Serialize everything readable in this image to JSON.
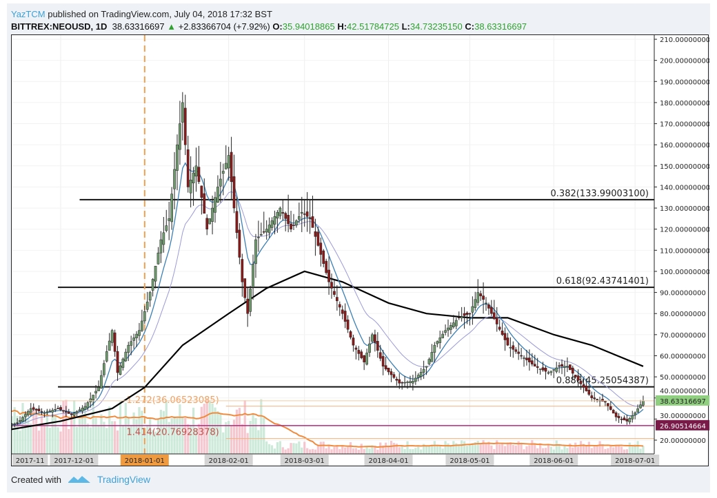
{
  "header": {
    "user": "YazTCM",
    "published": " published on TradingView.com, July 04, 2018 17:32 BST",
    "symbol": "BITTREX:NEOUSD, 1D",
    "last": "38.63316697",
    "change": "+2.83366704 (+7.92%)",
    "o_label": "O:",
    "o": "35.94018865",
    "h_label": "H:",
    "h": "42.51784725",
    "l_label": "L:",
    "l": "34.73235150",
    "c_label": "C:",
    "c": "38.63316697"
  },
  "footer": {
    "created_with": "Created with",
    "brand": "TradingView"
  },
  "colors": {
    "up": "#2ea12e",
    "bull_candle": "#6e9a6e",
    "bear_candle": "#8b1a1a",
    "ma_long": "#000000",
    "ema_fast": "#3a7fb5",
    "ema_slow": "#9a9ad8",
    "fib_orange": "#f0a060",
    "support": "#8b1a4a",
    "price_label": "#8fcf7f"
  },
  "chart_data": {
    "type": "candlestick",
    "symbol": "BITTREX:NEOUSD",
    "interval": "1D",
    "ylim": [
      15,
      210
    ],
    "y_ticks": [
      "210.00000000",
      "200.00000000",
      "190.00000000",
      "180.00000000",
      "170.00000000",
      "160.00000000",
      "150.00000000",
      "140.00000000",
      "130.00000000",
      "120.00000000",
      "110.00000000",
      "100.00000000",
      "90.00000000",
      "80.00000000",
      "70.00000000",
      "60.00000000",
      "50.00000000",
      "40.00000000",
      "30.00000000",
      "20.00000000"
    ],
    "x_ticks": [
      {
        "date": "2017-11-01",
        "label": "2017-11"
      },
      {
        "date": "2017-12-01",
        "label": "2017-12-01"
      },
      {
        "date": "2018-01-01",
        "label": "2018-01-01",
        "highlight": true
      },
      {
        "date": "2018-02-01",
        "label": "2018-02-01"
      },
      {
        "date": "2018-03-01",
        "label": "2018-03-01"
      },
      {
        "date": "2018-04-01",
        "label": "2018-04-01"
      },
      {
        "date": "2018-05-01",
        "label": "2018-05-01"
      },
      {
        "date": "2018-06-01",
        "label": "2018-06-01"
      },
      {
        "date": "2018-07-01",
        "label": "2018-07-01"
      }
    ],
    "approx_close": [
      [
        "2017-11-10",
        27
      ],
      [
        "2017-11-15",
        28
      ],
      [
        "2017-11-20",
        35
      ],
      [
        "2017-11-25",
        33
      ],
      [
        "2017-11-30",
        35
      ],
      [
        "2017-12-05",
        32
      ],
      [
        "2017-12-10",
        36
      ],
      [
        "2017-12-15",
        45
      ],
      [
        "2017-12-18",
        62
      ],
      [
        "2017-12-20",
        72
      ],
      [
        "2017-12-22",
        52
      ],
      [
        "2017-12-26",
        65
      ],
      [
        "2017-12-30",
        72
      ],
      [
        "2018-01-03",
        90
      ],
      [
        "2018-01-07",
        115
      ],
      [
        "2018-01-10",
        125
      ],
      [
        "2018-01-13",
        160
      ],
      [
        "2018-01-15",
        180
      ],
      [
        "2018-01-17",
        140
      ],
      [
        "2018-01-20",
        150
      ],
      [
        "2018-01-24",
        120
      ],
      [
        "2018-01-28",
        140
      ],
      [
        "2018-02-01",
        155
      ],
      [
        "2018-02-03",
        130
      ],
      [
        "2018-02-06",
        95
      ],
      [
        "2018-02-08",
        80
      ],
      [
        "2018-02-11",
        115
      ],
      [
        "2018-02-15",
        120
      ],
      [
        "2018-02-20",
        130
      ],
      [
        "2018-02-24",
        120
      ],
      [
        "2018-02-28",
        128
      ],
      [
        "2018-03-03",
        125
      ],
      [
        "2018-03-07",
        108
      ],
      [
        "2018-03-10",
        95
      ],
      [
        "2018-03-15",
        80
      ],
      [
        "2018-03-19",
        65
      ],
      [
        "2018-03-23",
        57
      ],
      [
        "2018-03-26",
        70
      ],
      [
        "2018-03-30",
        55
      ],
      [
        "2018-04-05",
        47
      ],
      [
        "2018-04-10",
        48
      ],
      [
        "2018-04-15",
        55
      ],
      [
        "2018-04-18",
        65
      ],
      [
        "2018-04-22",
        72
      ],
      [
        "2018-04-27",
        78
      ],
      [
        "2018-05-01",
        80
      ],
      [
        "2018-05-04",
        90
      ],
      [
        "2018-05-07",
        85
      ],
      [
        "2018-05-11",
        75
      ],
      [
        "2018-05-15",
        65
      ],
      [
        "2018-05-20",
        60
      ],
      [
        "2018-05-25",
        55
      ],
      [
        "2018-05-30",
        52
      ],
      [
        "2018-06-03",
        55
      ],
      [
        "2018-06-06",
        55
      ],
      [
        "2018-06-09",
        50
      ],
      [
        "2018-06-12",
        45
      ],
      [
        "2018-06-15",
        40
      ],
      [
        "2018-06-20",
        38
      ],
      [
        "2018-06-24",
        31
      ],
      [
        "2018-06-28",
        29
      ],
      [
        "2018-07-01",
        33
      ],
      [
        "2018-07-04",
        38.63
      ]
    ],
    "ma_long": [
      [
        "2017-11-10",
        24.5
      ],
      [
        "2017-12-01",
        29
      ],
      [
        "2017-12-20",
        35
      ],
      [
        "2018-01-01",
        45
      ],
      [
        "2018-01-15",
        65
      ],
      [
        "2018-02-01",
        80
      ],
      [
        "2018-02-15",
        92
      ],
      [
        "2018-03-01",
        100
      ],
      [
        "2018-03-15",
        95
      ],
      [
        "2018-04-01",
        85
      ],
      [
        "2018-04-15",
        80
      ],
      [
        "2018-05-01",
        78
      ],
      [
        "2018-05-15",
        78
      ],
      [
        "2018-06-01",
        70
      ],
      [
        "2018-06-15",
        65
      ],
      [
        "2018-07-04",
        55
      ]
    ],
    "levels": [
      {
        "label": "0.382(133.99003100)",
        "value": 133.990031,
        "style": "fib-major",
        "from": "2017-12-08"
      },
      {
        "label": "0.618(92.43741401)",
        "value": 92.43741401,
        "style": "fib-major",
        "from": "2017-11-30"
      },
      {
        "label": "0.886(45.25054387)",
        "value": 45.25054387,
        "style": "fib-major",
        "from": "2017-11-30"
      },
      {
        "label": "1.272(36.06523085)",
        "value": 36.06523085,
        "style": "fib-minor",
        "from": "2018-01-31"
      },
      {
        "label": "1.414(20.76928378)",
        "value": 20.76928378,
        "style": "fib-minor",
        "from": "2018-01-31"
      }
    ],
    "support_line": {
      "value": 26.90514664,
      "label": "26.90514664"
    },
    "last_price_label": "38.63316697",
    "vertical_marker": "2018-01-01"
  }
}
